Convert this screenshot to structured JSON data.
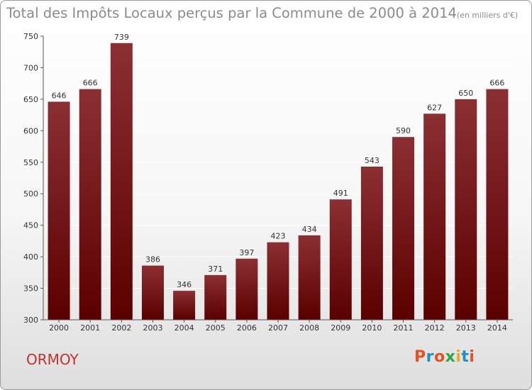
{
  "title": "Total des Impôts Locaux perçus par la Commune de 2000 à 2014",
  "title_unit": "(en milliers d'€)",
  "commune": "ORMOY",
  "logo": {
    "text": "Proxiti",
    "colors": [
      "#e8501e",
      "#1d8fd0",
      "#e8501e",
      "#2aa84a",
      "#f2a81d",
      "#1d8fd0",
      "#e8501e"
    ]
  },
  "colors": {
    "bar_top": "#8c2f33",
    "bar_bottom": "#5a0000",
    "grid": "#ffffff",
    "axis_text": "#333333",
    "title": "#8b8b8b",
    "commune": "#c0322e"
  },
  "chart_data": {
    "type": "bar",
    "title": "Total des Impôts Locaux perçus par la Commune de 2000 à 2014",
    "xlabel": "",
    "ylabel": "",
    "categories": [
      "2000",
      "2001",
      "2002",
      "2003",
      "2004",
      "2005",
      "2006",
      "2007",
      "2008",
      "2009",
      "2010",
      "2011",
      "2012",
      "2013",
      "2014"
    ],
    "values": [
      646,
      666,
      739,
      386,
      346,
      371,
      397,
      423,
      434,
      491,
      543,
      590,
      627,
      650,
      666
    ],
    "ylim": [
      300,
      750
    ],
    "yticks": [
      300,
      350,
      400,
      450,
      500,
      550,
      600,
      650,
      700,
      750
    ],
    "grid": true,
    "data_labels": true
  }
}
